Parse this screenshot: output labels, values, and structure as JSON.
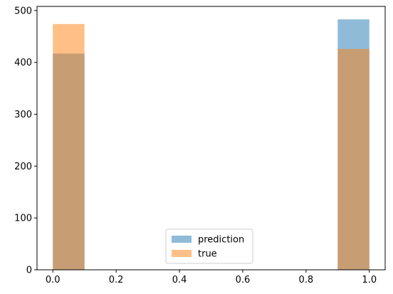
{
  "chart_data": {
    "type": "bar",
    "title": "",
    "xlabel": "",
    "ylabel": "",
    "xlim": [
      -0.05,
      1.05
    ],
    "ylim": [
      0,
      508
    ],
    "grid": false,
    "legend_position": "lower-center",
    "bins": [
      {
        "start": 0.0,
        "end": 0.1
      },
      {
        "start": 0.9,
        "end": 1.0
      }
    ],
    "series": [
      {
        "name": "prediction",
        "color": "#1f77b4",
        "opacity": 0.5,
        "values": [
          417,
          483
        ]
      },
      {
        "name": "true",
        "color": "#ff7f0e",
        "opacity": 0.5,
        "values": [
          474,
          426
        ]
      }
    ],
    "x_ticks": [
      0.0,
      0.2,
      0.4,
      0.6,
      0.8,
      1.0
    ],
    "x_tick_labels": [
      "0.0",
      "0.2",
      "0.4",
      "0.6",
      "0.8",
      "1.0"
    ],
    "y_ticks": [
      0,
      100,
      200,
      300,
      400,
      500
    ],
    "y_tick_labels": [
      "0",
      "100",
      "200",
      "300",
      "400",
      "500"
    ]
  }
}
